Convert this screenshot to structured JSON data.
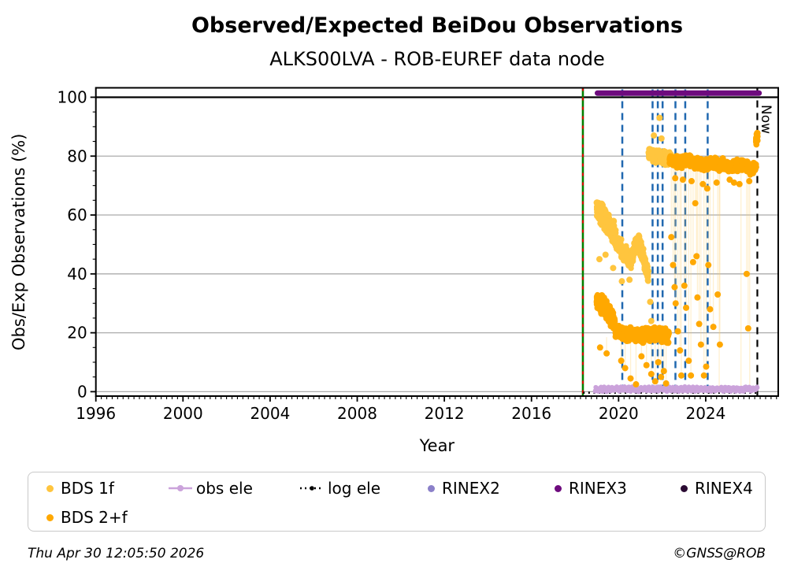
{
  "footer": {
    "timestamp": "Thu Apr 30 12:05:50 2026",
    "credit": "©GNSS@ROB"
  },
  "legend": {
    "items": [
      {
        "label": "BDS 1f",
        "marker": "dot",
        "color": "#FFC53E"
      },
      {
        "label": "obs ele",
        "marker": "line-dot",
        "color": "#CBA3DB"
      },
      {
        "label": "log ele",
        "marker": "dotted-dot",
        "color": "#000000"
      },
      {
        "label": "RINEX2",
        "marker": "dot",
        "color": "#8B80C9"
      },
      {
        "label": "RINEX3",
        "marker": "dot",
        "color": "#6E0B7E"
      },
      {
        "label": "RINEX4",
        "marker": "dot",
        "color": "#2B0B33"
      },
      {
        "label": "BDS 2+f",
        "marker": "dot",
        "color": "#FFA800"
      }
    ]
  },
  "chart_data": {
    "type": "scatter",
    "title": "Observed/Expected BeiDou Observations",
    "subtitle": "ALKS00LVA - ROB-EUREF data node",
    "xlabel": "Year",
    "ylabel": "Obs/Exp Observations (%)",
    "xlim": [
      1996,
      2027.33
    ],
    "ylim": [
      -1.5,
      103.2
    ],
    "xticks": [
      1996,
      2000,
      2004,
      2008,
      2012,
      2016,
      2020,
      2024
    ],
    "x_minor_step": 0.25,
    "yticks": [
      0,
      20,
      40,
      60,
      80,
      100
    ],
    "y_minor_step": 5,
    "grid": true,
    "grid_color": "#ABABAB",
    "reference_line": {
      "y": 100,
      "color": "#000000"
    },
    "install_line": {
      "x": 2018.36,
      "color": "#008000",
      "overlay_color": "#E00000",
      "style": "solid+red-dotted"
    },
    "event_lines": {
      "x": [
        2020.17,
        2021.56,
        2021.8,
        2022.02,
        2022.61,
        2023.06,
        2024.09
      ],
      "color": "#2068B0",
      "style": "dashed"
    },
    "now_line": {
      "x": 2026.37,
      "label": "Now",
      "color": "#000000",
      "style": "dashed"
    },
    "series": [
      {
        "name": "BDS 1f",
        "color": "#FFC53E",
        "kind": "scatter",
        "clusters": [
          {
            "path": [
              [
                2019.0,
                62
              ],
              [
                2019.25,
                60
              ],
              [
                2019.5,
                57
              ],
              [
                2019.78,
                54
              ]
            ],
            "spread": 4.5,
            "n": 260
          },
          {
            "path": [
              [
                2019.78,
                53
              ],
              [
                2020.0,
                50
              ],
              [
                2020.3,
                46.5
              ],
              [
                2020.6,
                44.5
              ]
            ],
            "spread": 3.8,
            "n": 170
          },
          {
            "path": [
              [
                2020.6,
                45
              ],
              [
                2020.8,
                50
              ],
              [
                2020.95,
                51
              ],
              [
                2021.15,
                45
              ],
              [
                2021.36,
                39
              ]
            ],
            "spread": 3.5,
            "n": 160
          },
          {
            "path": [
              [
                2021.38,
                81
              ],
              [
                2021.7,
                80
              ],
              [
                2022.0,
                79.5
              ],
              [
                2022.45,
                78.5
              ]
            ],
            "spread": 3.0,
            "n": 300
          }
        ],
        "outliers": [
          [
            2021.62,
            87
          ],
          [
            2021.88,
            93
          ],
          [
            2021.97,
            86
          ],
          [
            2020.15,
            37.5
          ],
          [
            2020.5,
            38
          ],
          [
            2021.45,
            30.5
          ],
          [
            2021.5,
            24
          ],
          [
            2019.12,
            45
          ],
          [
            2019.4,
            46.5
          ],
          [
            2019.75,
            42
          ]
        ]
      },
      {
        "name": "BDS 2+f",
        "color": "#FFA800",
        "kind": "scatter",
        "stem_color": "rgba(255,205,100,0.30)",
        "clusters": [
          {
            "path": [
              [
                2019.0,
                31
              ],
              [
                2019.3,
                29
              ],
              [
                2019.55,
                26.5
              ],
              [
                2019.82,
                23.5
              ]
            ],
            "spread": 4.0,
            "n": 280
          },
          {
            "path": [
              [
                2019.85,
                20.5
              ],
              [
                2020.4,
                19.5
              ],
              [
                2021.0,
                19
              ],
              [
                2021.6,
                19.8
              ],
              [
                2022.3,
                18.8
              ]
            ],
            "spread": 3.0,
            "n": 650
          },
          {
            "path": [
              [
                2022.35,
                78.5
              ],
              [
                2022.8,
                78
              ],
              [
                2023.2,
                78.5
              ],
              [
                2023.6,
                77.5
              ],
              [
                2023.9,
                76.5
              ],
              [
                2024.3,
                77.8
              ],
              [
                2024.8,
                77
              ],
              [
                2025.2,
                76.2
              ],
              [
                2025.7,
                77
              ],
              [
                2026.05,
                75.5
              ],
              [
                2026.32,
                76
              ]
            ],
            "spread": 2.6,
            "n": 800
          },
          {
            "path": [
              [
                2026.32,
                85.5
              ],
              [
                2026.37,
                85.5
              ]
            ],
            "spread": 3.4,
            "n": 22
          }
        ],
        "outliers": [
          [
            2019.15,
            15
          ],
          [
            2019.45,
            13
          ],
          [
            2020.12,
            10.5
          ],
          [
            2020.3,
            8
          ],
          [
            2020.55,
            4.5
          ],
          [
            2020.8,
            2.5
          ],
          [
            2021.05,
            12
          ],
          [
            2021.28,
            9
          ],
          [
            2021.5,
            6
          ],
          [
            2021.68,
            3.5
          ],
          [
            2021.82,
            10
          ],
          [
            2021.95,
            5
          ],
          [
            2022.08,
            7
          ],
          [
            2022.18,
            2.8
          ],
          [
            2022.42,
            52.5
          ],
          [
            2022.5,
            43
          ],
          [
            2022.57,
            35.5
          ],
          [
            2022.62,
            30
          ],
          [
            2022.72,
            20.5
          ],
          [
            2022.82,
            14
          ],
          [
            2022.88,
            5.5
          ],
          [
            2023.02,
            36
          ],
          [
            2023.1,
            28.5
          ],
          [
            2023.22,
            10.5
          ],
          [
            2023.32,
            5.5
          ],
          [
            2023.42,
            44
          ],
          [
            2023.52,
            64
          ],
          [
            2023.58,
            46
          ],
          [
            2023.62,
            32
          ],
          [
            2023.7,
            23
          ],
          [
            2023.78,
            16
          ],
          [
            2023.92,
            5.5
          ],
          [
            2024.02,
            8.5
          ],
          [
            2024.12,
            43
          ],
          [
            2024.2,
            28
          ],
          [
            2024.35,
            22
          ],
          [
            2024.55,
            33
          ],
          [
            2024.65,
            16
          ],
          [
            2025.88,
            40
          ],
          [
            2025.95,
            21.5
          ]
        ],
        "fringe": [
          [
            2022.95,
            72
          ],
          [
            2023.35,
            71.5
          ],
          [
            2023.87,
            70.5
          ],
          [
            2024.5,
            71
          ],
          [
            2025.1,
            72
          ],
          [
            2025.55,
            70.5
          ],
          [
            2026.0,
            71.5
          ],
          [
            2024.07,
            69
          ],
          [
            2022.6,
            72.5
          ],
          [
            2025.3,
            71
          ]
        ],
        "stems_extra": [
          [
            2025.62,
            0.5,
            76.5
          ],
          [
            2026.02,
            0.5,
            75.5
          ],
          [
            2024.62,
            0.5,
            77
          ]
        ]
      },
      {
        "name": "obs ele",
        "color": "#CBA3DB",
        "kind": "marker-band",
        "t0": 2018.92,
        "t1": 2026.37,
        "value": 0.85,
        "amplitude": 0.5,
        "n": 520
      },
      {
        "name": "log ele",
        "color": "#000000",
        "kind": "dotted-hline",
        "t0": 2018.37,
        "t1": 2026.37,
        "value": -0.35
      },
      {
        "name": "RINEX2",
        "color": "#8B80C9",
        "kind": "none"
      },
      {
        "name": "RINEX3",
        "color": "#6E0B7E",
        "kind": "thick-hline",
        "t0": 2019.03,
        "t1": 2026.45,
        "value": 101.4,
        "width": 7
      },
      {
        "name": "RINEX4",
        "color": "#2B0B33",
        "kind": "none"
      }
    ]
  }
}
